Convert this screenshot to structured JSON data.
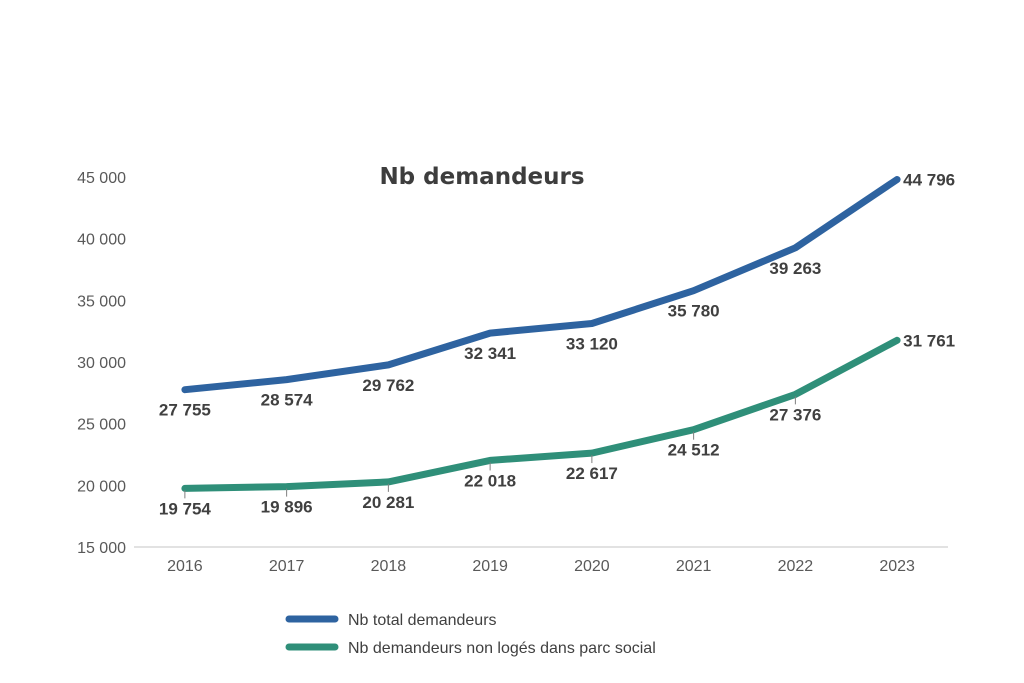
{
  "chart_data": {
    "type": "line",
    "title": "Nb demandeurs",
    "categories": [
      "2016",
      "2017",
      "2018",
      "2019",
      "2020",
      "2021",
      "2022",
      "2023"
    ],
    "ylim": [
      15000,
      45000
    ],
    "yticks": [
      15000,
      20000,
      25000,
      30000,
      35000,
      40000,
      45000
    ],
    "ytick_labels": [
      "15 000",
      "20 000",
      "25 000",
      "30 000",
      "35 000",
      "40 000",
      "45 000"
    ],
    "grid": false,
    "legend_position": "bottom",
    "series": [
      {
        "name": "Nb total demandeurs",
        "color": "#2e63a0",
        "values": [
          27755,
          28574,
          29762,
          32341,
          33120,
          35780,
          39263,
          44796
        ],
        "labels": [
          "27 755",
          "28 574",
          "29 762",
          "32 341",
          "33 120",
          "35 780",
          "39 263",
          "44 796"
        ]
      },
      {
        "name": "Nb demandeurs non logés dans parc social",
        "color": "#2f8f79",
        "values": [
          19754,
          19896,
          20281,
          22018,
          22617,
          24512,
          27376,
          31761
        ],
        "labels": [
          "19 754",
          "19 896",
          "20 281",
          "22 018",
          "22 617",
          "24 512",
          "27 376",
          "31 761"
        ]
      }
    ]
  }
}
